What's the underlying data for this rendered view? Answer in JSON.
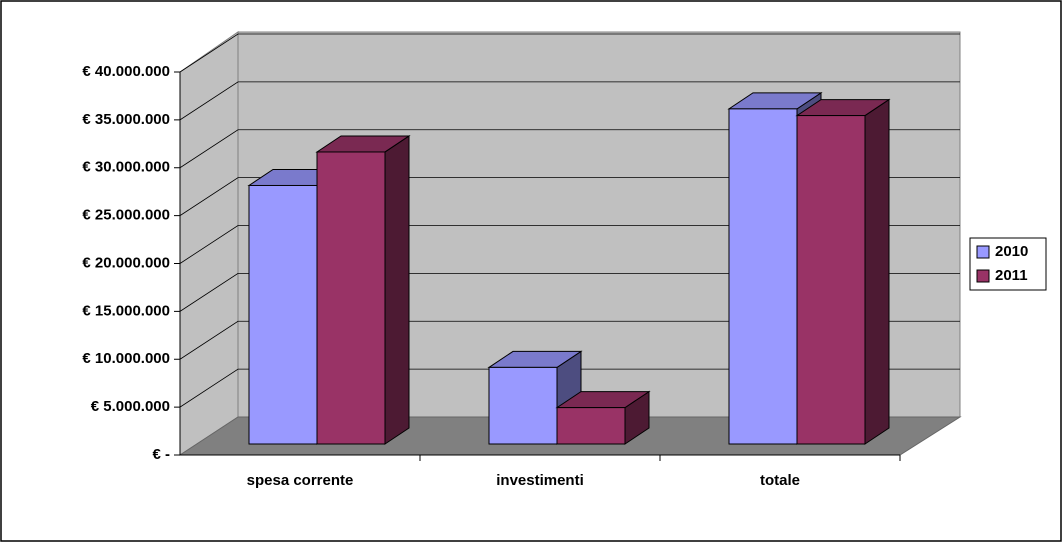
{
  "chart_data": {
    "type": "bar3d",
    "categories": [
      "spesa corrente",
      "investimenti",
      "totale"
    ],
    "series": [
      {
        "name": "2010",
        "color": "#9999ff",
        "values": [
          27000000,
          8000000,
          35000000
        ]
      },
      {
        "name": "2011",
        "color": "#993366",
        "values": [
          30500000,
          3800000,
          34300000
        ]
      }
    ],
    "ylim": [
      0,
      40000000
    ],
    "yticks": [
      {
        "value": 0,
        "label": "€ -"
      },
      {
        "value": 5000000,
        "label": "€ 5.000.000"
      },
      {
        "value": 10000000,
        "label": "€ 10.000.000"
      },
      {
        "value": 15000000,
        "label": "€ 15.000.000"
      },
      {
        "value": 20000000,
        "label": "€ 20.000.000"
      },
      {
        "value": 25000000,
        "label": "€ 25.000.000"
      },
      {
        "value": 30000000,
        "label": "€ 30.000.000"
      },
      {
        "value": 35000000,
        "label": "€ 35.000.000"
      },
      {
        "value": 40000000,
        "label": "€ 40.000.000"
      }
    ],
    "grid": true,
    "legend": "right"
  }
}
